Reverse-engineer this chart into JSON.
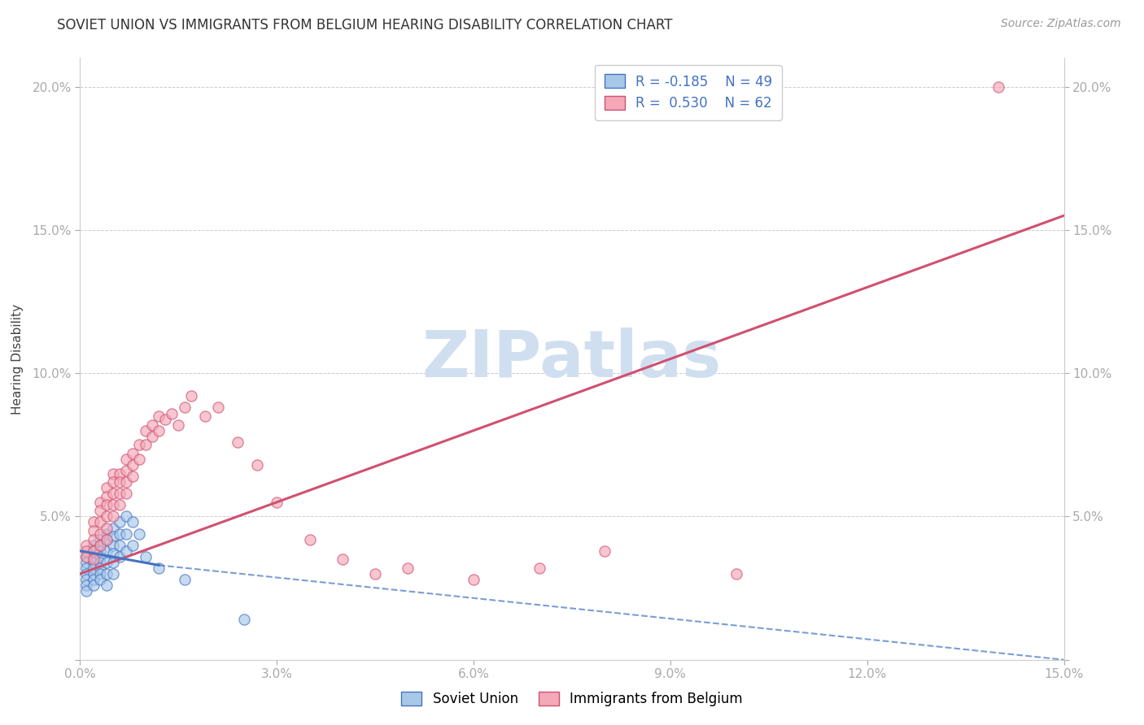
{
  "title": "SOVIET UNION VS IMMIGRANTS FROM BELGIUM HEARING DISABILITY CORRELATION CHART",
  "source": "Source: ZipAtlas.com",
  "ylabel": "Hearing Disability",
  "xlim": [
    0.0,
    0.15
  ],
  "ylim": [
    0.0,
    0.21
  ],
  "xticks": [
    0.0,
    0.03,
    0.06,
    0.09,
    0.12,
    0.15
  ],
  "xtick_labels": [
    "0.0%",
    "3.0%",
    "6.0%",
    "9.0%",
    "12.0%",
    "15.0%"
  ],
  "yticks": [
    0.0,
    0.05,
    0.1,
    0.15,
    0.2
  ],
  "ytick_labels_left": [
    "",
    "5.0%",
    "10.0%",
    "15.0%",
    "20.0%"
  ],
  "ytick_labels_right": [
    "",
    "5.0%",
    "10.0%",
    "15.0%",
    "20.0%"
  ],
  "legend_r1": "R = -0.185",
  "legend_n1": "N = 49",
  "legend_r2": "R = 0.530",
  "legend_n2": "N = 62",
  "color_soviet": "#a8c8e8",
  "color_belgium": "#f4a8b8",
  "color_trend_soviet": "#4472c4",
  "color_trend_belgium": "#d05070",
  "watermark": "ZIPatlas",
  "watermark_color": "#d0dff0",
  "soviet_x": [
    0.001,
    0.001,
    0.001,
    0.001,
    0.001,
    0.001,
    0.001,
    0.002,
    0.002,
    0.002,
    0.002,
    0.002,
    0.002,
    0.002,
    0.002,
    0.003,
    0.003,
    0.003,
    0.003,
    0.003,
    0.003,
    0.003,
    0.003,
    0.004,
    0.004,
    0.004,
    0.004,
    0.004,
    0.004,
    0.005,
    0.005,
    0.005,
    0.005,
    0.005,
    0.005,
    0.006,
    0.006,
    0.006,
    0.006,
    0.007,
    0.007,
    0.007,
    0.008,
    0.008,
    0.009,
    0.01,
    0.012,
    0.016,
    0.025
  ],
  "soviet_y": [
    0.036,
    0.034,
    0.032,
    0.03,
    0.028,
    0.026,
    0.024,
    0.04,
    0.038,
    0.036,
    0.034,
    0.032,
    0.03,
    0.028,
    0.026,
    0.042,
    0.04,
    0.038,
    0.036,
    0.034,
    0.032,
    0.03,
    0.028,
    0.044,
    0.042,
    0.038,
    0.034,
    0.03,
    0.026,
    0.046,
    0.043,
    0.04,
    0.037,
    0.034,
    0.03,
    0.048,
    0.044,
    0.04,
    0.036,
    0.05,
    0.044,
    0.038,
    0.048,
    0.04,
    0.044,
    0.036,
    0.032,
    0.028,
    0.014
  ],
  "belgium_x": [
    0.001,
    0.001,
    0.001,
    0.002,
    0.002,
    0.002,
    0.002,
    0.002,
    0.003,
    0.003,
    0.003,
    0.003,
    0.003,
    0.004,
    0.004,
    0.004,
    0.004,
    0.004,
    0.004,
    0.005,
    0.005,
    0.005,
    0.005,
    0.005,
    0.006,
    0.006,
    0.006,
    0.006,
    0.007,
    0.007,
    0.007,
    0.007,
    0.008,
    0.008,
    0.008,
    0.009,
    0.009,
    0.01,
    0.01,
    0.011,
    0.011,
    0.012,
    0.012,
    0.013,
    0.014,
    0.015,
    0.016,
    0.017,
    0.019,
    0.021,
    0.024,
    0.027,
    0.03,
    0.035,
    0.04,
    0.045,
    0.05,
    0.06,
    0.07,
    0.08,
    0.1,
    0.14
  ],
  "belgium_y": [
    0.04,
    0.038,
    0.036,
    0.048,
    0.045,
    0.042,
    0.038,
    0.035,
    0.055,
    0.052,
    0.048,
    0.044,
    0.04,
    0.06,
    0.057,
    0.054,
    0.05,
    0.046,
    0.042,
    0.065,
    0.062,
    0.058,
    0.054,
    0.05,
    0.065,
    0.062,
    0.058,
    0.054,
    0.07,
    0.066,
    0.062,
    0.058,
    0.072,
    0.068,
    0.064,
    0.075,
    0.07,
    0.08,
    0.075,
    0.082,
    0.078,
    0.085,
    0.08,
    0.084,
    0.086,
    0.082,
    0.088,
    0.092,
    0.085,
    0.088,
    0.076,
    0.068,
    0.055,
    0.042,
    0.035,
    0.03,
    0.032,
    0.028,
    0.032,
    0.038,
    0.03,
    0.2
  ],
  "belgium_trend_x0": 0.0,
  "belgium_trend_y0": 0.03,
  "belgium_trend_x1": 0.15,
  "belgium_trend_y1": 0.155,
  "soviet_trend_x0": 0.0,
  "soviet_trend_y0": 0.038,
  "soviet_trend_xsolid": 0.012,
  "soviet_trend_y_at_solid": 0.033,
  "soviet_trend_x1": 0.15,
  "soviet_trend_y1": 0.0
}
